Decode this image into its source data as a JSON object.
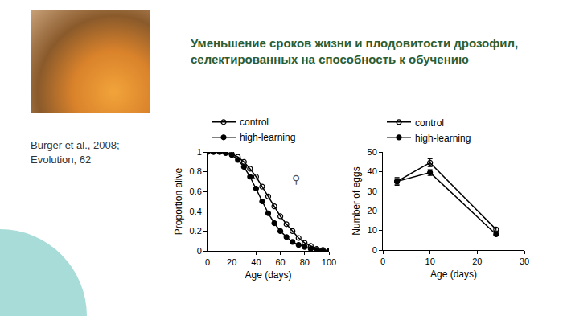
{
  "slide": {
    "title": [
      "Уменьшение сроков жизни и плодовитости дрозофил,",
      "селектированных на способность к обучению"
    ],
    "citation": [
      "Burger et al., 2008;",
      "Evolution, 62"
    ]
  },
  "chart_data": [
    {
      "type": "line",
      "x_label": "Age (days)",
      "y_label": "Proportion alive",
      "xlim": [
        0,
        100
      ],
      "xticks": [
        0,
        20,
        40,
        60,
        80,
        100
      ],
      "ylim": [
        0,
        1
      ],
      "yticks": [
        0,
        0.2,
        0.4,
        0.6,
        0.8,
        1
      ],
      "grid": false,
      "legend": "top left",
      "annotations": [
        {
          "text": "♀",
          "x": 73,
          "y": 0.72
        }
      ],
      "series": [
        {
          "name": "control",
          "color": "#000000",
          "marker": "circle-open",
          "x": [
            0,
            5,
            10,
            15,
            20,
            25,
            30,
            35,
            40,
            45,
            50,
            55,
            60,
            65,
            70,
            75,
            80,
            85,
            90,
            95,
            100
          ],
          "values": [
            1,
            1,
            1,
            0.99,
            0.98,
            0.95,
            0.9,
            0.83,
            0.75,
            0.65,
            0.55,
            0.45,
            0.35,
            0.27,
            0.2,
            0.13,
            0.08,
            0.05,
            0.02,
            0.01,
            0
          ]
        },
        {
          "name": "high-learning",
          "color": "#000000",
          "marker": "circle",
          "x": [
            0,
            5,
            10,
            15,
            20,
            25,
            30,
            35,
            40,
            45,
            50,
            55,
            60,
            65,
            70,
            75,
            80,
            85,
            90,
            95,
            100
          ],
          "values": [
            1,
            1,
            1,
            0.99,
            0.97,
            0.92,
            0.85,
            0.75,
            0.63,
            0.5,
            0.38,
            0.28,
            0.2,
            0.14,
            0.09,
            0.06,
            0.04,
            0.02,
            0.01,
            0,
            0
          ]
        }
      ]
    },
    {
      "type": "line",
      "x_label": "Age (days)",
      "y_label": "Number of eggs",
      "xlim": [
        0,
        30
      ],
      "xticks": [
        0,
        10,
        20,
        30
      ],
      "ylim": [
        0,
        50
      ],
      "yticks": [
        0,
        10,
        20,
        30,
        40,
        50
      ],
      "grid": false,
      "legend": "top left",
      "series": [
        {
          "name": "control",
          "color": "#000000",
          "marker": "circle-open",
          "x": [
            3,
            10,
            24
          ],
          "values": [
            35,
            44.5,
            10.5
          ],
          "errors": [
            1.5,
            2,
            0.8
          ]
        },
        {
          "name": "high-learning",
          "color": "#000000",
          "marker": "circle",
          "x": [
            3,
            10,
            24
          ],
          "values": [
            35,
            39.5,
            8
          ],
          "errors": [
            2,
            1.5,
            0.7
          ]
        }
      ]
    }
  ]
}
